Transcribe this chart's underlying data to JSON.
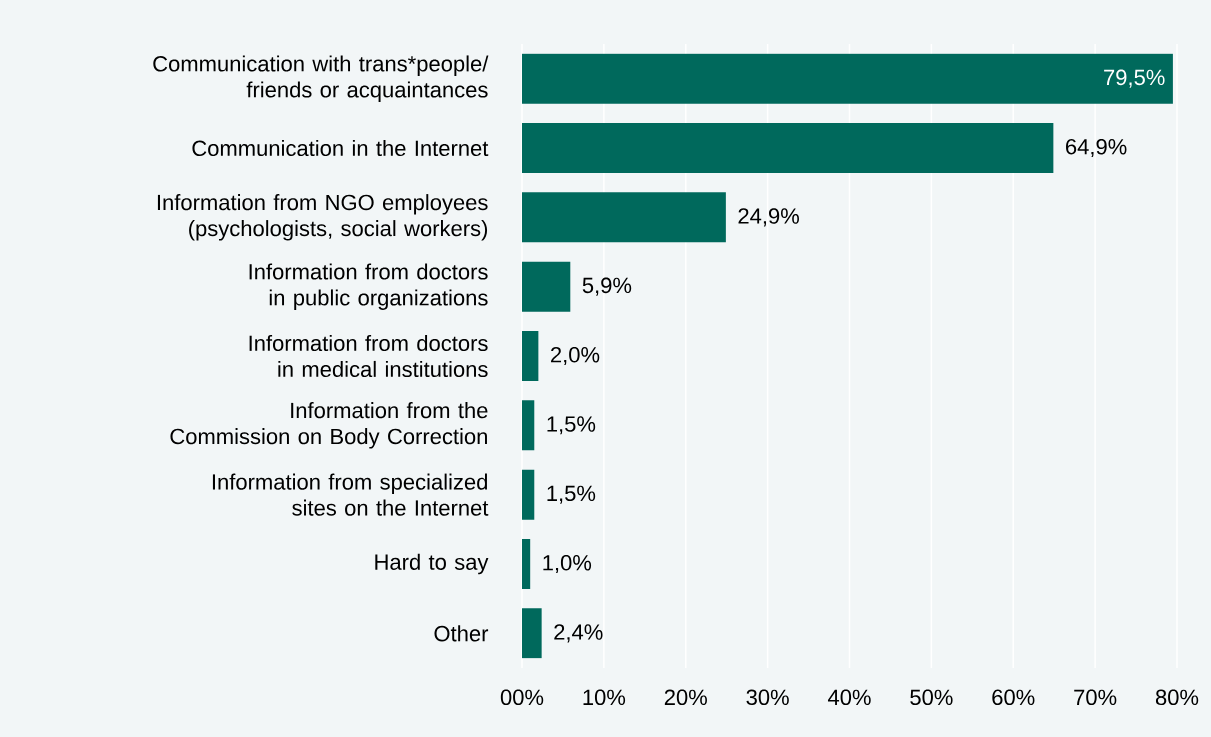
{
  "chart_data": {
    "type": "bar",
    "orientation": "horizontal",
    "categories": [
      "Communication with trans*people/ friends or acquaintances",
      "Communication in the Internet",
      "Information from NGO employees (psychologists, social workers)",
      "Information from doctors in public organizations",
      "Information from doctors in medical institutions",
      "Information from the Commission on Body Correction",
      "Information from specialized sites on the Internet",
      "Hard to say",
      "Other"
    ],
    "values": [
      79.5,
      64.9,
      24.9,
      5.9,
      2.0,
      1.5,
      1.5,
      1.0,
      2.4
    ],
    "value_labels": [
      "79,5%",
      "64,9%",
      "24,9%",
      "5,9%",
      "2,0%",
      "1,5%",
      "1,5%",
      "1,0%",
      "2,4%"
    ],
    "color": "#00695c",
    "xlim": [
      0,
      80
    ],
    "xticks": [
      {
        "value": 0,
        "label": "00%"
      },
      {
        "value": 10,
        "label": "10%"
      },
      {
        "value": 20,
        "label": "20%"
      },
      {
        "value": 30,
        "label": "30%"
      },
      {
        "value": 40,
        "label": "40%"
      },
      {
        "value": 50,
        "label": "50%"
      },
      {
        "value": 60,
        "label": "60%"
      },
      {
        "value": 70,
        "label": "70%"
      },
      {
        "value": 80,
        "label": "80%"
      }
    ],
    "grid": "x"
  }
}
